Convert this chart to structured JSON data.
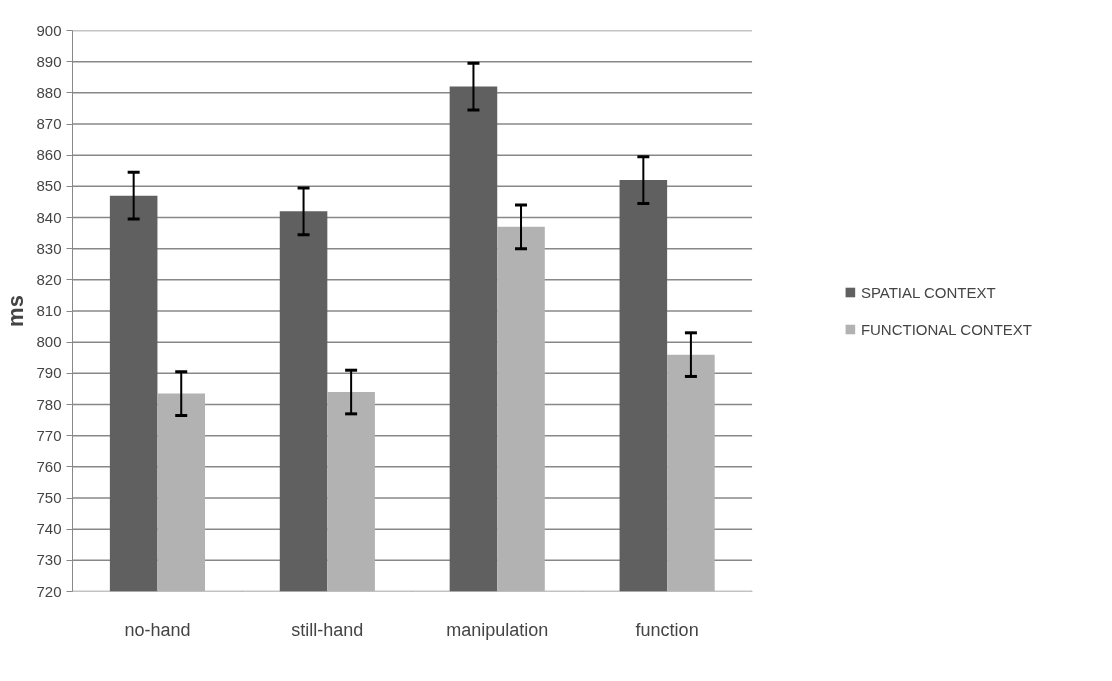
{
  "chart_data": {
    "type": "bar",
    "ylabel": "ms",
    "categories": [
      "no-hand",
      "still-hand",
      "manipulation",
      "function"
    ],
    "series": [
      {
        "name": "SPATIAL CONTEXT",
        "color": "#606060",
        "values": [
          847,
          842,
          882,
          852
        ],
        "errors": [
          7.5,
          7.5,
          7.5,
          7.5
        ]
      },
      {
        "name": "FUNCTIONAL CONTEXT",
        "color": "#b2b2b2",
        "values": [
          783.5,
          784,
          837,
          796
        ],
        "errors": [
          7,
          7,
          7,
          7
        ]
      }
    ],
    "ylim": [
      720,
      900
    ],
    "yticks": [
      720,
      730,
      740,
      750,
      760,
      770,
      780,
      790,
      800,
      810,
      820,
      830,
      840,
      850,
      860,
      870,
      880,
      890,
      900
    ],
    "grid": "y",
    "legend": "right"
  }
}
